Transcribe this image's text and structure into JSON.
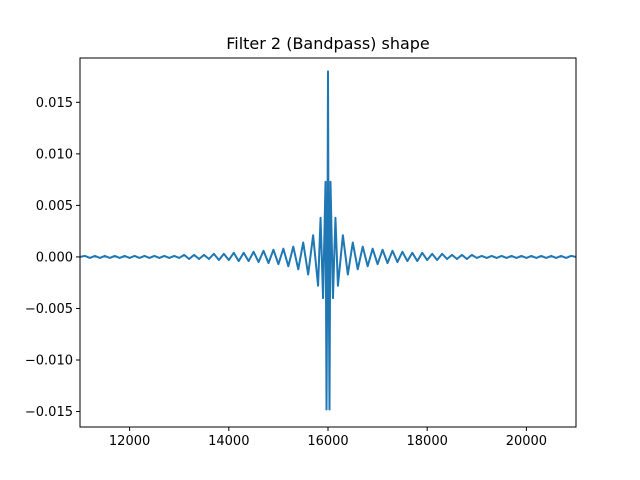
{
  "chart_data": {
    "type": "line",
    "title": "Filter 2 (Bandpass) shape",
    "xlabel": "",
    "ylabel": "",
    "xlim": [
      11000,
      21000
    ],
    "ylim": [
      -0.0165,
      0.0193
    ],
    "grid": false,
    "legend": false,
    "line_color": "#1f77b4",
    "x_ticks": [
      {
        "value": 12000,
        "label": "12000"
      },
      {
        "value": 14000,
        "label": "14000"
      },
      {
        "value": 16000,
        "label": "16000"
      },
      {
        "value": 18000,
        "label": "18000"
      },
      {
        "value": 20000,
        "label": "20000"
      }
    ],
    "y_ticks": [
      {
        "value": 0.015,
        "label": "0.015"
      },
      {
        "value": 0.01,
        "label": "0.010"
      },
      {
        "value": 0.005,
        "label": "0.005"
      },
      {
        "value": 0.0,
        "label": "0.000"
      },
      {
        "value": -0.005,
        "label": "−0.005"
      },
      {
        "value": -0.01,
        "label": "−0.010"
      },
      {
        "value": -0.015,
        "label": "−0.015"
      }
    ],
    "series": [
      {
        "x": [
          11000,
          11100,
          11200,
          11300,
          11400,
          11500,
          11600,
          11700,
          11800,
          11900,
          12000,
          12100,
          12200,
          12300,
          12400,
          12500,
          12600,
          12700,
          12800,
          12900,
          13000,
          13100,
          13200,
          13300,
          13400,
          13500,
          13600,
          13700,
          13800,
          13900,
          14000,
          14100,
          14200,
          14300,
          14400,
          14500,
          14600,
          14700,
          14800,
          14900,
          15000,
          15100,
          15200,
          15300,
          15400,
          15500,
          15600,
          15700,
          15800,
          15850,
          15900,
          15950,
          15970,
          15990,
          16000,
          16010,
          16030,
          16050,
          16100,
          16150,
          16200,
          16300,
          16400,
          16500,
          16600,
          16700,
          16800,
          16900,
          17000,
          17100,
          17200,
          17300,
          17400,
          17500,
          17600,
          17700,
          17800,
          17900,
          18000,
          18100,
          18200,
          18300,
          18400,
          18500,
          18600,
          18700,
          18800,
          18900,
          19000,
          19100,
          19200,
          19300,
          19400,
          19500,
          19600,
          19700,
          19800,
          19900,
          20000,
          20100,
          20200,
          20300,
          20400,
          20500,
          20600,
          20700,
          20800,
          20900,
          21000
        ],
        "values": [
          0.0,
          0.0001,
          -0.0001,
          0.0001,
          -0.0001,
          0.0001,
          -0.0001,
          0.0001,
          -0.0001,
          0.0001,
          -0.0001,
          0.0001,
          -0.0001,
          0.0001,
          -0.0001,
          0.0001,
          -0.0001,
          0.0001,
          -0.0001,
          0.0001,
          -0.0001,
          0.0002,
          -0.0002,
          0.0002,
          -0.0002,
          0.0002,
          -0.0002,
          0.0003,
          -0.0003,
          0.0003,
          -0.0003,
          0.0004,
          -0.0004,
          0.0004,
          -0.0004,
          0.0005,
          -0.0005,
          0.0006,
          -0.0006,
          0.0007,
          -0.0007,
          0.0008,
          -0.0009,
          0.001,
          -0.0012,
          0.0014,
          -0.0017,
          0.0021,
          -0.0028,
          0.0038,
          -0.004,
          0.0073,
          -0.0148,
          0.003,
          0.018,
          0.003,
          -0.0148,
          0.0073,
          -0.004,
          0.0038,
          -0.0028,
          0.0021,
          -0.0017,
          0.0014,
          -0.0012,
          0.001,
          -0.0009,
          0.0008,
          -0.0007,
          0.0007,
          -0.0006,
          0.0006,
          -0.0005,
          0.0005,
          -0.0004,
          0.0004,
          -0.0004,
          0.0004,
          -0.0003,
          0.0003,
          -0.0003,
          0.0003,
          -0.0002,
          0.0002,
          -0.0002,
          0.0002,
          -0.0002,
          0.0002,
          -0.0001,
          0.0001,
          -0.0001,
          0.0001,
          -0.0001,
          0.0001,
          -0.0001,
          0.0001,
          -0.0001,
          0.0001,
          -0.0001,
          0.0001,
          -0.0001,
          0.0001,
          -0.0001,
          0.0001,
          -0.0001,
          0.0001,
          -0.0001,
          0.0001,
          0.0
        ]
      }
    ]
  }
}
